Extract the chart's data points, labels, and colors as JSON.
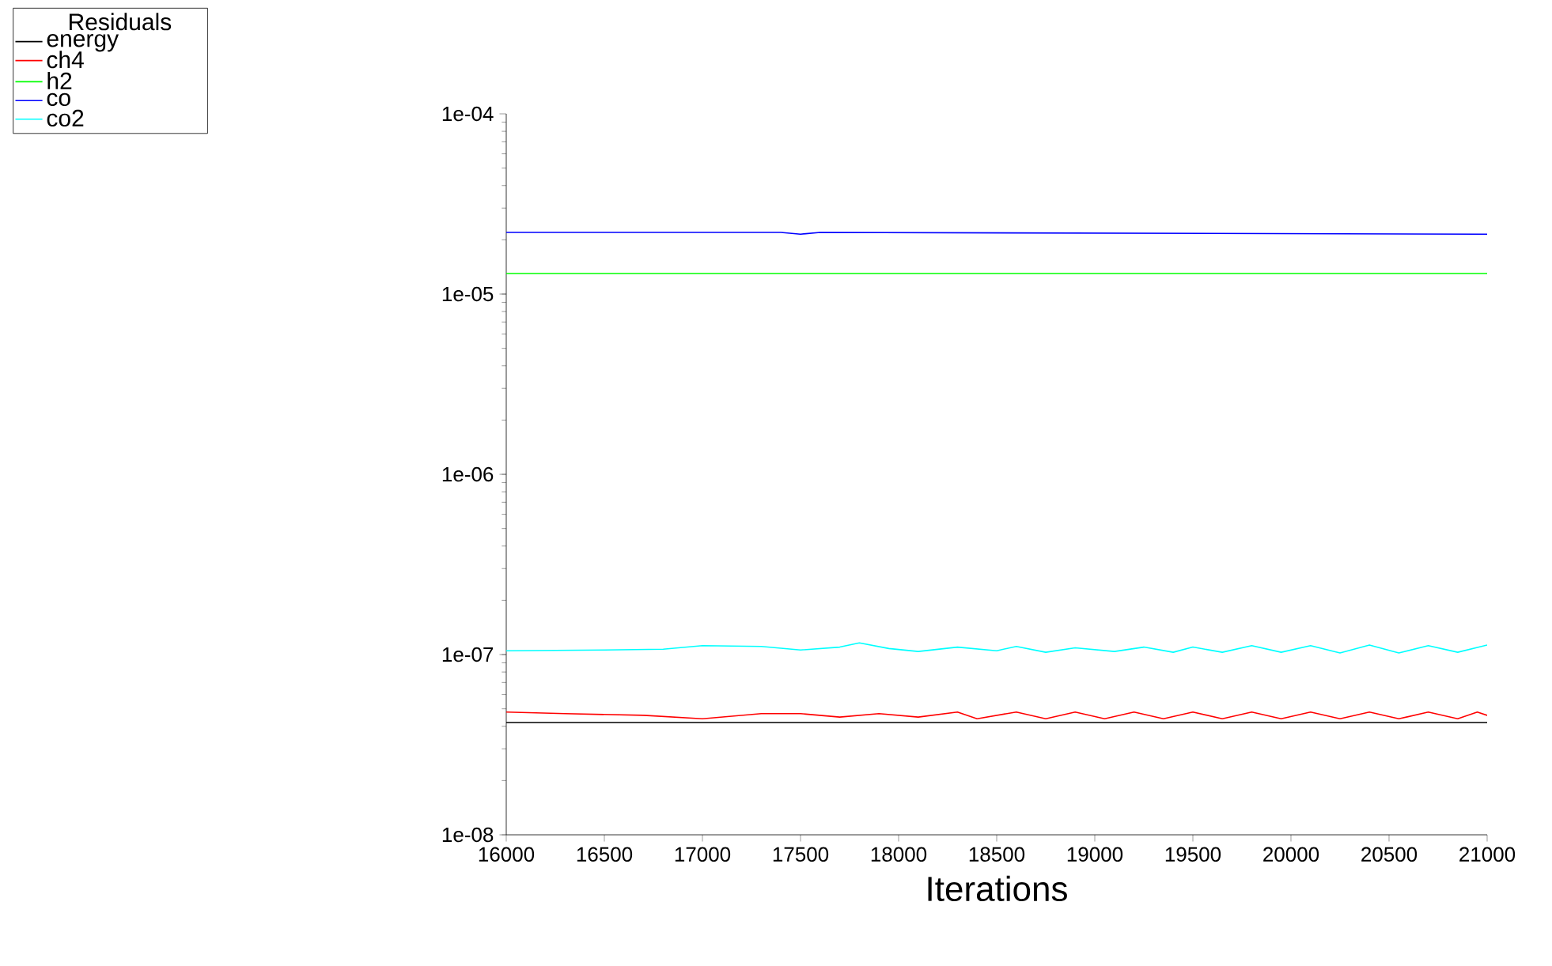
{
  "chart_data": {
    "type": "line",
    "xlabel": "Iterations",
    "legend_title": "Residuals",
    "legend": "top left",
    "log": "y",
    "grid": false,
    "marker": "none",
    "line_style": "solid",
    "xlim": [
      16000,
      21000
    ],
    "xticks": [
      16000,
      16500,
      17000,
      17500,
      18000,
      18500,
      19000,
      19500,
      20000,
      20500,
      21000
    ],
    "ylim": [
      1e-08,
      0.0001
    ],
    "yticks": [
      {
        "value": 1e-08,
        "label": "1e-08"
      },
      {
        "value": 1e-07,
        "label": "1e-07"
      },
      {
        "value": 1e-06,
        "label": "1e-06"
      },
      {
        "value": 1e-05,
        "label": "1e-05"
      },
      {
        "value": 0.0001,
        "label": "1e-04"
      }
    ],
    "series": [
      {
        "name": "energy",
        "color": "#000000",
        "x": [
          16000,
          21000
        ],
        "values": [
          4.2e-08,
          4.2e-08
        ]
      },
      {
        "name": "ch4",
        "color": "#ff0000",
        "x": [
          16000,
          16300,
          16700,
          17000,
          17300,
          17500,
          17700,
          17900,
          18100,
          18300,
          18400,
          18600,
          18750,
          18900,
          19050,
          19200,
          19350,
          19500,
          19650,
          19800,
          19950,
          20100,
          20250,
          20400,
          20550,
          20700,
          20850,
          20950,
          21000
        ],
        "values": [
          4.8e-08,
          4.7e-08,
          4.6e-08,
          4.4e-08,
          4.7e-08,
          4.7e-08,
          4.5e-08,
          4.7e-08,
          4.5e-08,
          4.8e-08,
          4.4e-08,
          4.8e-08,
          4.4e-08,
          4.8e-08,
          4.4e-08,
          4.8e-08,
          4.4e-08,
          4.8e-08,
          4.4e-08,
          4.8e-08,
          4.4e-08,
          4.8e-08,
          4.4e-08,
          4.8e-08,
          4.4e-08,
          4.8e-08,
          4.4e-08,
          4.8e-08,
          4.6e-08
        ]
      },
      {
        "name": "h2",
        "color": "#00ff00",
        "x": [
          16000,
          21000
        ],
        "values": [
          1.3e-05,
          1.3e-05
        ]
      },
      {
        "name": "co",
        "color": "#0000ff",
        "x": [
          16000,
          17400,
          17500,
          17600,
          21000
        ],
        "values": [
          2.2e-05,
          2.2e-05,
          2.15e-05,
          2.2e-05,
          2.15e-05
        ]
      },
      {
        "name": "co2",
        "color": "#00ffff",
        "x": [
          16000,
          16500,
          16800,
          17000,
          17300,
          17500,
          17700,
          17800,
          17950,
          18100,
          18300,
          18500,
          18600,
          18750,
          18900,
          19100,
          19250,
          19400,
          19500,
          19650,
          19800,
          19950,
          20100,
          20250,
          20400,
          20550,
          20700,
          20850,
          21000
        ],
        "values": [
          1.05e-07,
          1.06e-07,
          1.07e-07,
          1.12e-07,
          1.11e-07,
          1.06e-07,
          1.1e-07,
          1.16e-07,
          1.08e-07,
          1.04e-07,
          1.1e-07,
          1.05e-07,
          1.11e-07,
          1.03e-07,
          1.09e-07,
          1.04e-07,
          1.1e-07,
          1.03e-07,
          1.1e-07,
          1.03e-07,
          1.12e-07,
          1.03e-07,
          1.12e-07,
          1.02e-07,
          1.13e-07,
          1.02e-07,
          1.12e-07,
          1.03e-07,
          1.13e-07
        ]
      }
    ]
  }
}
